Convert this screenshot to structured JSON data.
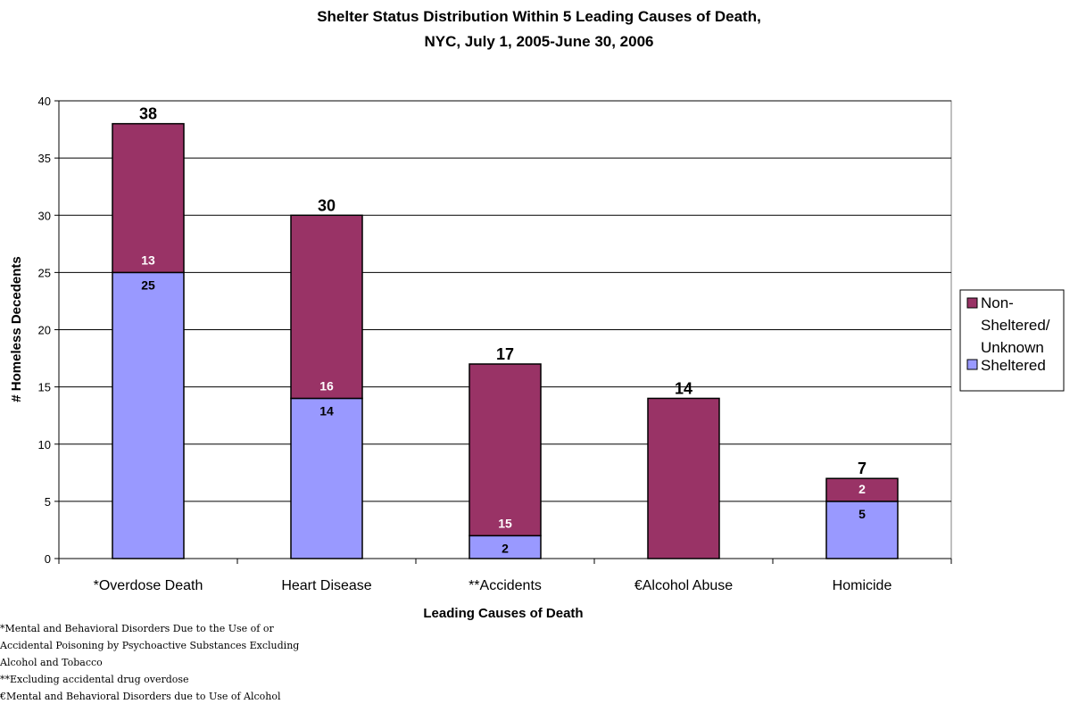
{
  "chart_data": {
    "type": "bar",
    "stacked": true,
    "title_line1": "Shelter Status Distribution Within 5 Leading Causes of Death,",
    "title_line2": "NYC, July 1, 2005-June 30, 2006",
    "xlabel": "Leading Causes of Death",
    "ylabel": "# Homeless Decedents",
    "ylim": [
      0,
      40
    ],
    "yticks": [
      "0",
      "5",
      "10",
      "15",
      "20",
      "25",
      "30",
      "35",
      "40"
    ],
    "grid": true,
    "legend_position": "right",
    "categories": [
      "*Overdose Death",
      "Heart Disease",
      "**Accidents",
      "€Alcohol Abuse",
      "Homicide"
    ],
    "series": [
      {
        "name": "Sheltered",
        "color": "#9999ff",
        "label_color": "#000000",
        "values": [
          25,
          14,
          2,
          0,
          5
        ],
        "labels": [
          "25",
          "14",
          "2",
          "",
          "5"
        ]
      },
      {
        "name": "Non-Sheltered/ Unknown",
        "color": "#993366",
        "label_color": "#ffffff",
        "values": [
          13,
          16,
          15,
          14,
          2
        ],
        "labels": [
          "13",
          "16",
          "15",
          "",
          "2"
        ]
      }
    ],
    "totals": [
      "38",
      "30",
      "17",
      "14",
      "7"
    ],
    "legend": {
      "nonsheltered_lines": [
        "Non-",
        "Sheltered/",
        "Unknown"
      ],
      "sheltered": "Sheltered"
    }
  },
  "footnotes": [
    "*Mental and Behavioral Disorders Due to the Use of or",
    "Accidental Poisoning by Psychoactive Substances Excluding",
    "Alcohol and Tobacco",
    "**Excluding accidental drug overdose",
    "€Mental and Behavioral Disorders due to Use of Alcohol"
  ]
}
